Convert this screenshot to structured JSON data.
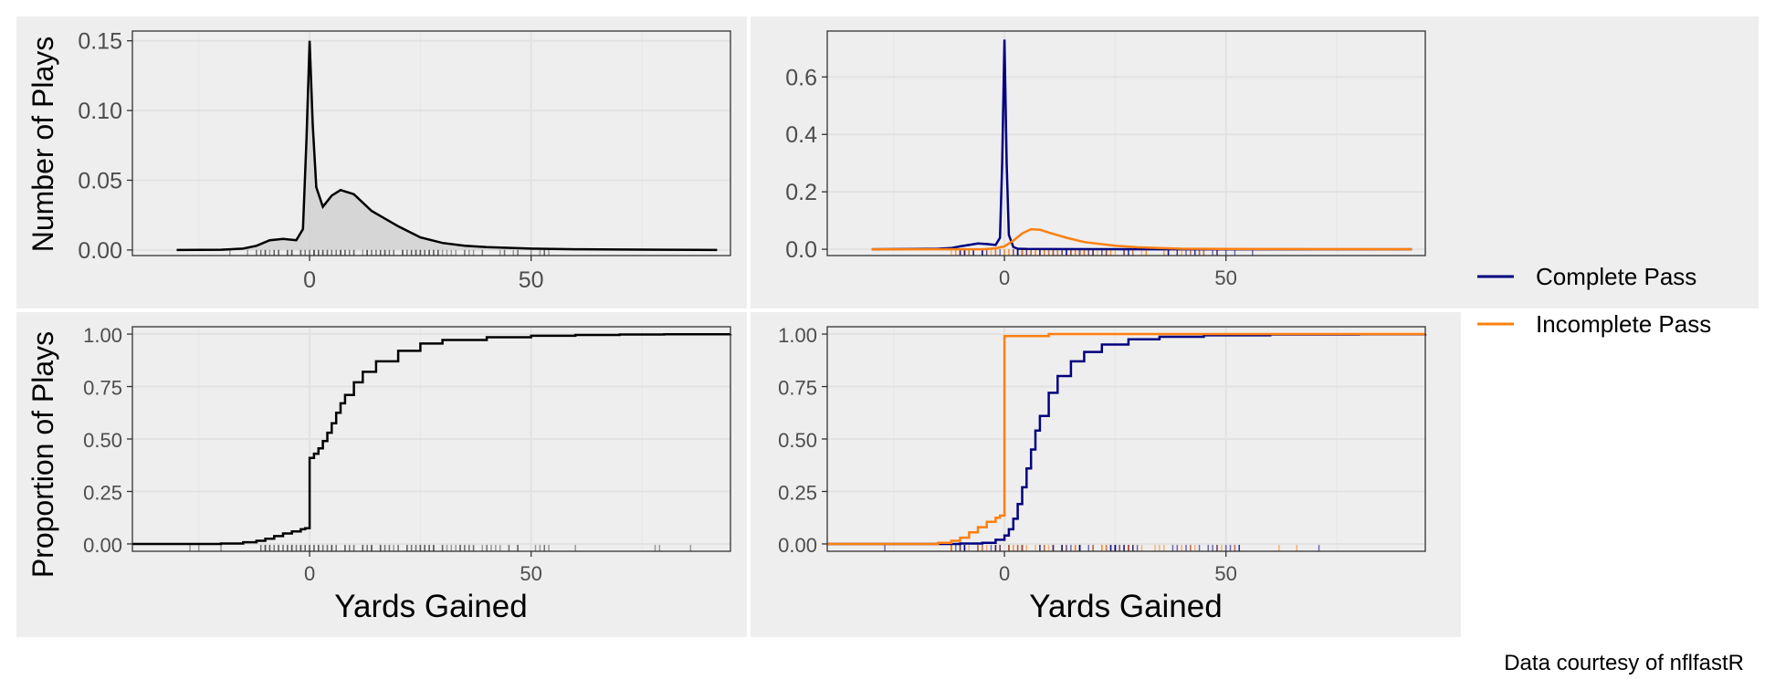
{
  "caption": "Data courtesy of nflfastR",
  "legend": {
    "items": [
      {
        "label": "Complete Pass",
        "color": "#000080"
      },
      {
        "label": "Incomplete Pass",
        "color": "#ff7f0e"
      }
    ]
  },
  "colors": {
    "overall": "#000000",
    "complete": "#000080",
    "incomplete": "#ff7f0e",
    "density_fill": "#d3d3d3",
    "panel_bg": "#eeeeee",
    "grid": "#e2e2e2"
  },
  "chart_data": [
    {
      "panel": "top-left",
      "type": "area",
      "ylabel": "Number of Plays",
      "xlabel": "",
      "xlim": [
        -40,
        95
      ],
      "ylim": [
        -0.004,
        0.157
      ],
      "xticks": [
        0,
        50
      ],
      "yticks": [
        "0.00",
        "0.05",
        "0.10",
        "0.15"
      ],
      "rug": true,
      "series": [
        {
          "key": "overall",
          "x": [
            -30,
            -20,
            -15,
            -12,
            -9,
            -6,
            -3,
            -1.5,
            -0.7,
            0,
            0.7,
            1.5,
            3,
            5,
            7,
            10,
            14,
            20,
            25,
            30,
            35,
            40,
            50,
            60,
            70,
            80,
            92
          ],
          "y": [
            0,
            0.0002,
            0.001,
            0.003,
            0.007,
            0.008,
            0.007,
            0.015,
            0.08,
            0.15,
            0.09,
            0.045,
            0.031,
            0.039,
            0.043,
            0.04,
            0.028,
            0.017,
            0.009,
            0.005,
            0.003,
            0.002,
            0.001,
            0.0005,
            0.0003,
            0.0002,
            0
          ]
        }
      ]
    },
    {
      "panel": "top-right",
      "type": "area",
      "ylabel": "",
      "xlabel": "",
      "xlim": [
        -40,
        95
      ],
      "ylim": [
        -0.022,
        0.76
      ],
      "xticks": [
        0,
        50
      ],
      "yticks": [
        "0.0",
        "0.2",
        "0.4",
        "0.6"
      ],
      "rug": true,
      "series": [
        {
          "key": "complete",
          "x": [
            -30,
            -20,
            -15,
            -12,
            -10,
            -8,
            -6,
            -4,
            -2,
            -1,
            -0.5,
            0,
            0.5,
            1,
            2,
            3,
            5,
            10,
            20,
            40,
            60,
            80,
            92
          ],
          "y": [
            0,
            0.001,
            0.002,
            0.004,
            0.01,
            0.015,
            0.02,
            0.018,
            0.015,
            0.04,
            0.3,
            0.73,
            0.3,
            0.05,
            0.008,
            0.002,
            0.001,
            0.0005,
            0.0002,
            0,
            0,
            0,
            0
          ]
        },
        {
          "key": "incomplete",
          "x": [
            -30,
            -20,
            -10,
            -5,
            -2,
            0,
            2,
            4,
            6,
            8,
            10,
            14,
            18,
            25,
            30,
            35,
            40,
            50,
            60,
            70,
            80,
            92
          ],
          "y": [
            0,
            0,
            0,
            0,
            0.003,
            0.01,
            0.03,
            0.055,
            0.07,
            0.068,
            0.058,
            0.04,
            0.025,
            0.012,
            0.007,
            0.004,
            0.002,
            0.001,
            0.0005,
            0.0002,
            0.0001,
            0
          ]
        }
      ]
    },
    {
      "panel": "bottom-left",
      "type": "line",
      "ylabel": "Proportion of Plays",
      "xlabel": "Yards Gained",
      "xlim": [
        -40,
        95
      ],
      "ylim": [
        -0.035,
        1.035
      ],
      "xticks": [
        0,
        50
      ],
      "yticks": [
        "0.00",
        "0.25",
        "0.50",
        "0.75",
        "1.00"
      ],
      "rug": true,
      "series": [
        {
          "key": "overall",
          "x": [
            -40,
            -20,
            -15,
            -12,
            -10,
            -8,
            -6,
            -4,
            -2,
            -1,
            0,
            0,
            1,
            2,
            3,
            4,
            5,
            6,
            7,
            8,
            10,
            12,
            15,
            20,
            25,
            30,
            40,
            50,
            60,
            70,
            80,
            95
          ],
          "y": [
            0,
            0.002,
            0.008,
            0.015,
            0.025,
            0.037,
            0.05,
            0.06,
            0.07,
            0.075,
            0.08,
            0.41,
            0.43,
            0.455,
            0.49,
            0.53,
            0.575,
            0.625,
            0.67,
            0.71,
            0.77,
            0.82,
            0.87,
            0.92,
            0.955,
            0.972,
            0.985,
            0.992,
            0.996,
            0.998,
            0.999,
            1.0
          ]
        }
      ]
    },
    {
      "panel": "bottom-right",
      "type": "line",
      "ylabel": "",
      "xlabel": "Yards Gained",
      "xlim": [
        -40,
        95
      ],
      "ylim": [
        -0.035,
        1.035
      ],
      "xticks": [
        0,
        50
      ],
      "yticks": [
        "0.00",
        "0.25",
        "0.50",
        "0.75",
        "1.00"
      ],
      "rug": true,
      "series": [
        {
          "key": "complete",
          "x": [
            -40,
            -10,
            -5,
            -2,
            0,
            1,
            2,
            3,
            4,
            5,
            6,
            7,
            8,
            10,
            12,
            15,
            18,
            22,
            28,
            35,
            45,
            60,
            80,
            95
          ],
          "y": [
            0,
            0.002,
            0.005,
            0.02,
            0.04,
            0.07,
            0.12,
            0.19,
            0.27,
            0.36,
            0.45,
            0.54,
            0.61,
            0.72,
            0.8,
            0.87,
            0.915,
            0.95,
            0.975,
            0.987,
            0.994,
            0.998,
            0.999,
            1.0
          ]
        },
        {
          "key": "incomplete",
          "x": [
            -40,
            -20,
            -15,
            -12,
            -10,
            -8,
            -6,
            -4,
            -2,
            -1,
            0,
            0,
            10,
            95
          ],
          "y": [
            0,
            0,
            0.005,
            0.015,
            0.03,
            0.055,
            0.08,
            0.105,
            0.125,
            0.135,
            0.14,
            0.99,
            1.0,
            1.0
          ]
        }
      ]
    }
  ]
}
